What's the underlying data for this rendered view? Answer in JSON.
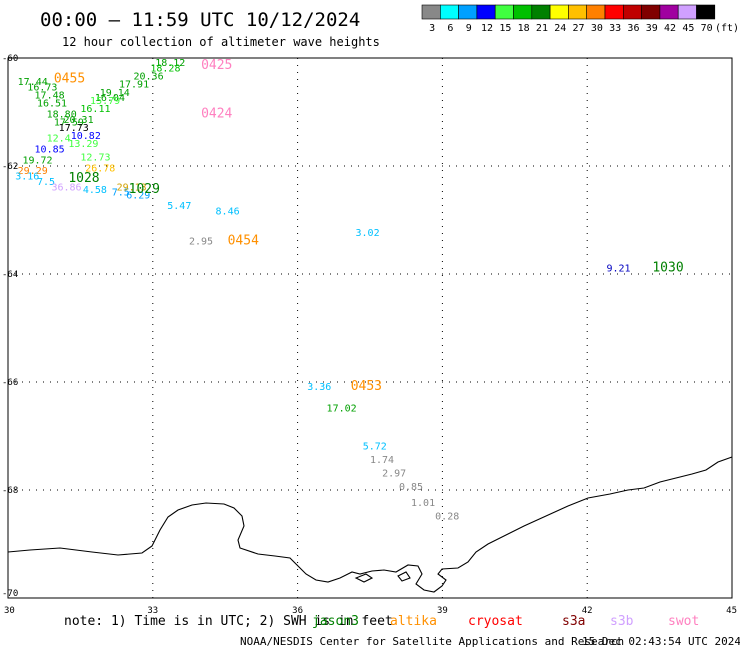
{
  "header": {
    "title": "00:00 – 11:59 UTC 10/12/2024",
    "subtitle": "12 hour collection of altimeter wave heights"
  },
  "legend": {
    "unit": "(ft)",
    "items": [
      {
        "label": "3",
        "color": "#888888"
      },
      {
        "label": "6",
        "color": "#00ffff"
      },
      {
        "label": "9",
        "color": "#00a0ff"
      },
      {
        "label": "12",
        "color": "#0000ff"
      },
      {
        "label": "15",
        "color": "#40ff40"
      },
      {
        "label": "18",
        "color": "#00c000"
      },
      {
        "label": "21",
        "color": "#008000"
      },
      {
        "label": "24",
        "color": "#ffff00"
      },
      {
        "label": "27",
        "color": "#ffc000"
      },
      {
        "label": "30",
        "color": "#ff8000"
      },
      {
        "label": "33",
        "color": "#ff0000"
      },
      {
        "label": "36",
        "color": "#c00000"
      },
      {
        "label": "39",
        "color": "#800000"
      },
      {
        "label": "42",
        "color": "#a000a0"
      },
      {
        "label": "45",
        "color": "#d0a0ff"
      },
      {
        "label": "70",
        "color": "#000000"
      }
    ]
  },
  "axes": {
    "x_ticks": [
      "30",
      "33",
      "36",
      "39",
      "42",
      "45"
    ],
    "y_ticks": [
      "-60",
      "-62",
      "-64",
      "-66",
      "-68",
      "-70"
    ]
  },
  "map_data": {
    "lon_range": [
      30,
      45
    ],
    "lat_range": [
      -70,
      -60
    ],
    "observations": [
      {
        "lon": 33.05,
        "lat": -60.15,
        "value": "18.12",
        "color": "#00a000"
      },
      {
        "lon": 32.95,
        "lat": -60.25,
        "value": "18.28",
        "color": "#00c000"
      },
      {
        "lon": 32.6,
        "lat": -60.4,
        "value": "20.36",
        "color": "#00a000"
      },
      {
        "lon": 30.2,
        "lat": -60.5,
        "value": "17.44",
        "color": "#00a000"
      },
      {
        "lon": 32.3,
        "lat": -60.55,
        "value": "17.91",
        "color": "#00a000"
      },
      {
        "lon": 30.4,
        "lat": -60.6,
        "value": "16.73",
        "color": "#00a000"
      },
      {
        "lon": 31.9,
        "lat": -60.7,
        "value": "19.14",
        "color": "#00a000"
      },
      {
        "lon": 30.55,
        "lat": -60.75,
        "value": "17.48",
        "color": "#00a000"
      },
      {
        "lon": 31.8,
        "lat": -60.8,
        "value": "16.04",
        "color": "#00a000"
      },
      {
        "lon": 31.7,
        "lat": -60.85,
        "value": "15.79",
        "color": "#40ff40"
      },
      {
        "lon": 30.6,
        "lat": -60.9,
        "value": "16.51",
        "color": "#00a000"
      },
      {
        "lon": 31.5,
        "lat": -61.0,
        "value": "16.11",
        "color": "#00c000"
      },
      {
        "lon": 30.8,
        "lat": -61.1,
        "value": "18.80",
        "color": "#00a000"
      },
      {
        "lon": 31.15,
        "lat": -61.2,
        "value": "20.31",
        "color": "#00a000"
      },
      {
        "lon": 30.95,
        "lat": -61.25,
        "value": "17.59",
        "color": "#00a000"
      },
      {
        "lon": 31.05,
        "lat": -61.35,
        "value": "17.73",
        "color": "#000000"
      },
      {
        "lon": 31.3,
        "lat": -61.5,
        "value": "10.82",
        "color": "#0000ff"
      },
      {
        "lon": 30.8,
        "lat": -61.55,
        "value": "12.4",
        "color": "#40ff40"
      },
      {
        "lon": 31.25,
        "lat": -61.65,
        "value": "13.29",
        "color": "#40ff40"
      },
      {
        "lon": 30.55,
        "lat": -61.75,
        "value": "10.85",
        "color": "#0000ff"
      },
      {
        "lon": 31.5,
        "lat": -61.9,
        "value": "12.73",
        "color": "#40ff40"
      },
      {
        "lon": 30.3,
        "lat": -61.95,
        "value": "19.72",
        "color": "#00a000"
      },
      {
        "lon": 31.6,
        "lat": -62.1,
        "value": "26.78",
        "color": "#ffc000"
      },
      {
        "lon": 30.2,
        "lat": -62.15,
        "value": "29.29",
        "color": "#ff8000"
      },
      {
        "lon": 30.15,
        "lat": -62.25,
        "value": "3.16",
        "color": "#00c0ff"
      },
      {
        "lon": 30.6,
        "lat": -62.35,
        "value": "7.5",
        "color": "#00c0ff"
      },
      {
        "lon": 30.9,
        "lat": -62.45,
        "value": "36.86",
        "color": "#d0a0ff"
      },
      {
        "lon": 31.55,
        "lat": -62.5,
        "value": "4.58",
        "color": "#00c0ff"
      },
      {
        "lon": 32.15,
        "lat": -62.55,
        "value": "7.5",
        "color": "#00a0ff"
      },
      {
        "lon": 32.25,
        "lat": -62.45,
        "value": "29.13",
        "color": "#d0a000"
      },
      {
        "lon": 32.45,
        "lat": -62.6,
        "value": "6.29",
        "color": "#00a0ff"
      },
      {
        "lon": 33.3,
        "lat": -62.8,
        "value": "5.47",
        "color": "#00c0ff"
      },
      {
        "lon": 34.3,
        "lat": -62.9,
        "value": "8.46",
        "color": "#00c0ff"
      },
      {
        "lon": 33.75,
        "lat": -63.45,
        "value": "2.95",
        "color": "#888888"
      },
      {
        "lon": 37.2,
        "lat": -63.3,
        "value": "3.02",
        "color": "#00c0ff"
      },
      {
        "lon": 42.4,
        "lat": -63.95,
        "value": "9.21",
        "color": "#0000c0"
      },
      {
        "lon": 36.2,
        "lat": -66.15,
        "value": "3.36",
        "color": "#00c0ff"
      },
      {
        "lon": 36.6,
        "lat": -66.55,
        "value": "17.02",
        "color": "#00a000"
      },
      {
        "lon": 37.35,
        "lat": -67.25,
        "value": "5.72",
        "color": "#00c0ff"
      },
      {
        "lon": 37.5,
        "lat": -67.5,
        "value": "1.74",
        "color": "#888888"
      },
      {
        "lon": 37.75,
        "lat": -67.75,
        "value": "2.97",
        "color": "#888888"
      },
      {
        "lon": 38.1,
        "lat": -68.0,
        "value": "0.85",
        "color": "#888888"
      },
      {
        "lon": 38.35,
        "lat": -68.3,
        "value": "1.01",
        "color": "#888888"
      },
      {
        "lon": 38.85,
        "lat": -68.55,
        "value": "0.28",
        "color": "#888888"
      }
    ],
    "pass_labels": [
      {
        "lon": 34.0,
        "lat": -60.2,
        "text": "0425",
        "color": "#ff80c0"
      },
      {
        "lon": 30.95,
        "lat": -60.45,
        "text": "0455",
        "color": "#ff9000"
      },
      {
        "lon": 34.0,
        "lat": -61.1,
        "text": "0424",
        "color": "#ff80c0"
      },
      {
        "lon": 31.25,
        "lat": -62.3,
        "text": "1028",
        "color": "#008000"
      },
      {
        "lon": 32.5,
        "lat": -62.5,
        "text": "1029",
        "color": "#008000"
      },
      {
        "lon": 34.55,
        "lat": -63.45,
        "text": "0454",
        "color": "#ff9000"
      },
      {
        "lon": 43.35,
        "lat": -63.95,
        "text": "1030",
        "color": "#008000"
      },
      {
        "lon": 37.1,
        "lat": -66.15,
        "text": "0453",
        "color": "#ff9000"
      }
    ]
  },
  "footer": {
    "note": "note: 1) Time is in UTC; 2) SWH is in feet",
    "satellites": [
      {
        "name": "jason3",
        "color": "#008000"
      },
      {
        "name": "altika",
        "color": "#ff9000"
      },
      {
        "name": "cryosat",
        "color": "#ff0000"
      },
      {
        "name": "s3a",
        "color": "#800000"
      },
      {
        "name": "s3b",
        "color": "#d0a0ff"
      },
      {
        "name": "swot",
        "color": "#ff80c0"
      }
    ],
    "credit": "NOAA/NESDIS Center for Satellite Applications and Research",
    "timestamp": "15 Dec 02:43:54 UTC 2024"
  }
}
